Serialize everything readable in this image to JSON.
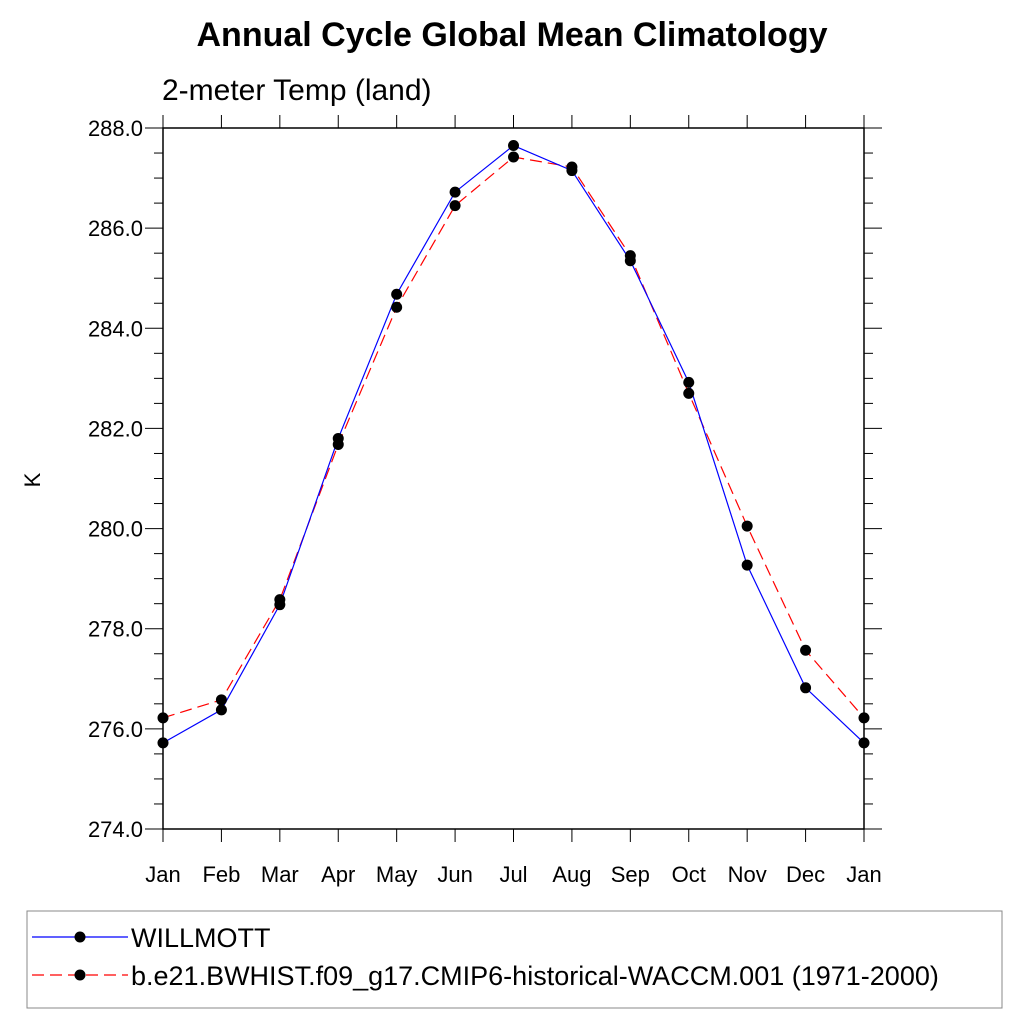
{
  "chart_data": {
    "type": "line",
    "title": "Annual Cycle Global Mean Climatology",
    "subtitle": "2-meter Temp (land)",
    "xlabel": "",
    "ylabel": "K",
    "categories": [
      "Jan",
      "Feb",
      "Mar",
      "Apr",
      "May",
      "Jun",
      "Jul",
      "Aug",
      "Sep",
      "Oct",
      "Nov",
      "Dec",
      "Jan"
    ],
    "ylim": [
      274.0,
      288.0
    ],
    "yticks": [
      "274.0",
      "276.0",
      "278.0",
      "280.0",
      "282.0",
      "284.0",
      "286.0",
      "288.0"
    ],
    "series": [
      {
        "name": "WILLMOTT",
        "color": "#0000ff",
        "line_style": "solid",
        "marker": "filled-circle",
        "values": [
          275.72,
          276.38,
          278.48,
          281.8,
          284.68,
          286.72,
          287.65,
          287.15,
          285.35,
          282.92,
          279.27,
          276.82,
          275.72
        ]
      },
      {
        "name": "b.e21.BWHIST.f09_g17.CMIP6-historical-WACCM.001 (1971-2000)",
        "color": "#ff0000",
        "line_style": "dashed",
        "marker": "filled-circle",
        "values": [
          276.22,
          276.58,
          278.58,
          281.68,
          284.42,
          286.45,
          287.42,
          287.22,
          285.45,
          282.7,
          280.05,
          277.57,
          276.22
        ]
      }
    ],
    "legend_position": "bottom",
    "grid": false
  }
}
